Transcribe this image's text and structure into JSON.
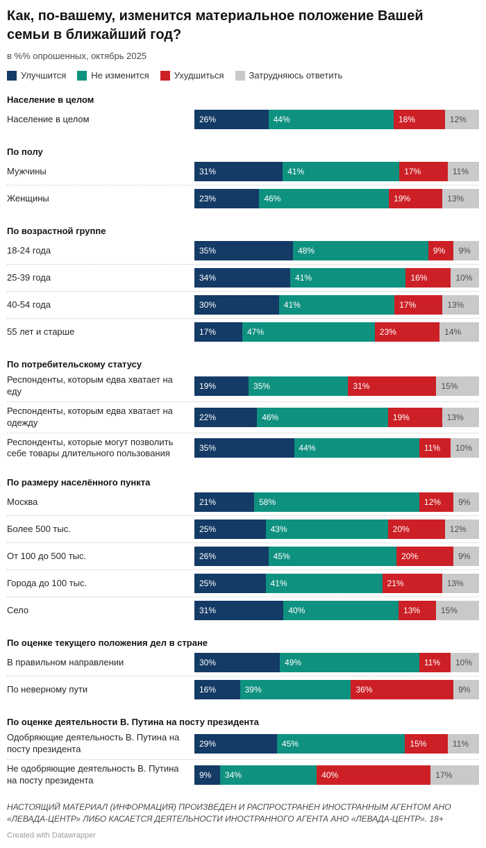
{
  "title": "Как, по-вашему, изменится материальное положение Вашей семьи в ближайший год?",
  "subtitle": "в %% опрошенных, октябрь 2025",
  "legend": [
    {
      "label": "Улучшится",
      "color": "#143a66"
    },
    {
      "label": "Не изменится",
      "color": "#0f9180"
    },
    {
      "label": "Ухудшиться",
      "color": "#cc2026"
    },
    {
      "label": "Затрудняюсь ответить",
      "color": "#c9c9c9"
    }
  ],
  "colors": {
    "improve": "#143a66",
    "no_change": "#0f9180",
    "worsen": "#cc2026",
    "hard_to_say": "#c9c9c9",
    "label_on_dark": "#ffffff",
    "label_on_gray": "#4d4d4d"
  },
  "chart_data": {
    "type": "bar",
    "stacked": true,
    "orientation": "horizontal",
    "unit": "%",
    "series_names": [
      "Улучшится",
      "Не изменится",
      "Ухудшиться",
      "Затрудняюсь ответить"
    ],
    "groups": [
      {
        "header": "Население в целом",
        "rows": [
          {
            "label": "Население в целом",
            "values": [
              26,
              44,
              18,
              12
            ]
          }
        ]
      },
      {
        "header": "По полу",
        "rows": [
          {
            "label": "Мужчины",
            "values": [
              31,
              41,
              17,
              11
            ]
          },
          {
            "label": "Женщины",
            "values": [
              23,
              46,
              19,
              13
            ]
          }
        ]
      },
      {
        "header": "По возрастной группе",
        "rows": [
          {
            "label": "18-24 года",
            "values": [
              35,
              48,
              9,
              9
            ]
          },
          {
            "label": "25-39 года",
            "values": [
              34,
              41,
              16,
              10
            ]
          },
          {
            "label": "40-54 года",
            "values": [
              30,
              41,
              17,
              13
            ]
          },
          {
            "label": "55 лет и старше",
            "values": [
              17,
              47,
              23,
              14
            ]
          }
        ]
      },
      {
        "header": "По потребительскому статусу",
        "rows": [
          {
            "label": "Респонденты, которым едва хватает на еду",
            "values": [
              19,
              35,
              31,
              15
            ]
          },
          {
            "label": "Респонденты, которым едва хватает на одежду",
            "values": [
              22,
              46,
              19,
              13
            ]
          },
          {
            "label": "Респонденты, которые могут позволить себе товары длительного пользования",
            "values": [
              35,
              44,
              11,
              10
            ]
          }
        ]
      },
      {
        "header": "По размеру населённого пункта",
        "rows": [
          {
            "label": "Москва",
            "values": [
              21,
              58,
              12,
              9
            ]
          },
          {
            "label": "Более 500 тыс.",
            "values": [
              25,
              43,
              20,
              12
            ]
          },
          {
            "label": "От 100 до 500 тыс.",
            "values": [
              26,
              45,
              20,
              9
            ]
          },
          {
            "label": "Города до 100 тыс.",
            "values": [
              25,
              41,
              21,
              13
            ]
          },
          {
            "label": "Село",
            "values": [
              31,
              40,
              13,
              15
            ]
          }
        ]
      },
      {
        "header": "По оценке текущего положения дел в стране",
        "rows": [
          {
            "label": "В правильном направлении",
            "values": [
              30,
              49,
              11,
              10
            ]
          },
          {
            "label": "По неверному пути",
            "values": [
              16,
              39,
              36,
              9
            ]
          }
        ]
      },
      {
        "header": "По оценке деятельности В. Путина на посту президента",
        "rows": [
          {
            "label": "Одобряющие деятельность В. Путина на посту президента",
            "values": [
              29,
              45,
              15,
              11
            ]
          },
          {
            "label": "Не одобряющие деятельность В. Путина на посту президента",
            "values": [
              9,
              34,
              40,
              17
            ]
          }
        ]
      }
    ]
  },
  "footer": {
    "note": "НАСТОЯЩИЙ МАТЕРИАЛ (ИНФОРМАЦИЯ) ПРОИЗВЕДЕН И РАСПРОСТРАНЕН ИНОСТРАННЫМ АГЕНТОМ АНО «ЛЕВАДА-ЦЕНТР» ЛИБО КАСАЕТСЯ ДЕЯТЕЛЬНОСТИ ИНОСТРАННОГО АГЕНТА АНО «ЛЕВАДА-ЦЕНТР». 18+",
    "credit": "Created with Datawrapper"
  }
}
